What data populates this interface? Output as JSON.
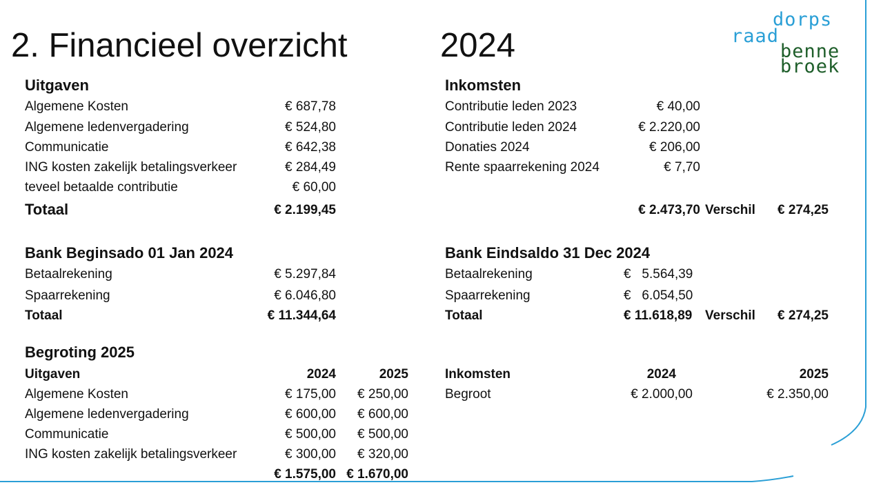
{
  "title": "2. Financieel overzicht",
  "year": "2024",
  "logo": {
    "line1": "dorps",
    "line2": "raad",
    "line3": "benne",
    "line4": "broek",
    "color_blue": "#2a9fd6",
    "color_green": "#1e5e2a"
  },
  "accent_color": "#2a9fd6",
  "uitgaven": {
    "heading": "Uitgaven",
    "rows": [
      {
        "label": "Algemene Kosten",
        "value": "€ 687,78"
      },
      {
        "label": "Algemene ledenvergadering",
        "value": "€ 524,80"
      },
      {
        "label": "Communicatie",
        "value": "€ 642,38"
      },
      {
        "label": "ING kosten  zakelijk betalingsverkeer",
        "value": "€ 284,49"
      },
      {
        "label": "teveel betaalde contributie",
        "value": "€ 60,00"
      }
    ],
    "total_label": "Totaal",
    "total_value": "€ 2.199,45"
  },
  "inkomsten": {
    "heading": "Inkomsten",
    "rows": [
      {
        "label": "Contributie leden 2023",
        "value": "€ 40,00"
      },
      {
        "label": "Contributie leden 2024",
        "value": "€ 2.220,00"
      },
      {
        "label": "Donaties 2024",
        "value": "€ 206,00"
      },
      {
        "label": "Rente spaarrekening 2024",
        "value": "€ 7,70"
      }
    ],
    "total_value": "€ 2.473,70",
    "verschil_label": "Verschil",
    "verschil_value": "€ 274,25"
  },
  "bank_begin": {
    "heading": "Bank Beginsado 01 Jan 2024",
    "rows": [
      {
        "label": "Betaalrekening",
        "value": "€ 5.297,84"
      },
      {
        "label": "Spaarrekening",
        "value": "€ 6.046,80"
      }
    ],
    "total_label": "Totaal",
    "total_value": "€ 11.344,64"
  },
  "bank_end": {
    "heading": "Bank Eindsaldo 31 Dec 2024",
    "rows": [
      {
        "label": "Betaalrekening",
        "value": "€   5.564,39"
      },
      {
        "label": "Spaarrekening",
        "value": "€   6.054,50"
      }
    ],
    "total_label": "Totaal",
    "total_value": "€ 11.618,89",
    "verschil_label": "Verschil",
    "verschil_value": "€ 274,25"
  },
  "begroting": {
    "heading": "Begroting 2025",
    "uitgaven_label": "Uitgaven",
    "col1": "2024",
    "col2": "2025",
    "rows": [
      {
        "label": "Algemene Kosten",
        "v2024": "€ 175,00",
        "v2025": "€ 250,00"
      },
      {
        "label": "Algemene ledenvergadering",
        "v2024": "€ 600,00",
        "v2025": "€ 600,00"
      },
      {
        "label": "Communicatie",
        "v2024": "€ 500,00",
        "v2025": "€ 500,00"
      },
      {
        "label": "ING kosten  zakelijk betalingsverkeer",
        "v2024": "€ 300,00",
        "v2025": "€ 320,00"
      }
    ],
    "total2024": "€ 1.575,00",
    "total2025": "€ 1.670,00",
    "inkomsten_label": "Inkomsten",
    "inkomsten_rows": [
      {
        "label": "Begroot",
        "v2024": "€ 2.000,00",
        "v2025": "€ 2.350,00"
      }
    ]
  }
}
